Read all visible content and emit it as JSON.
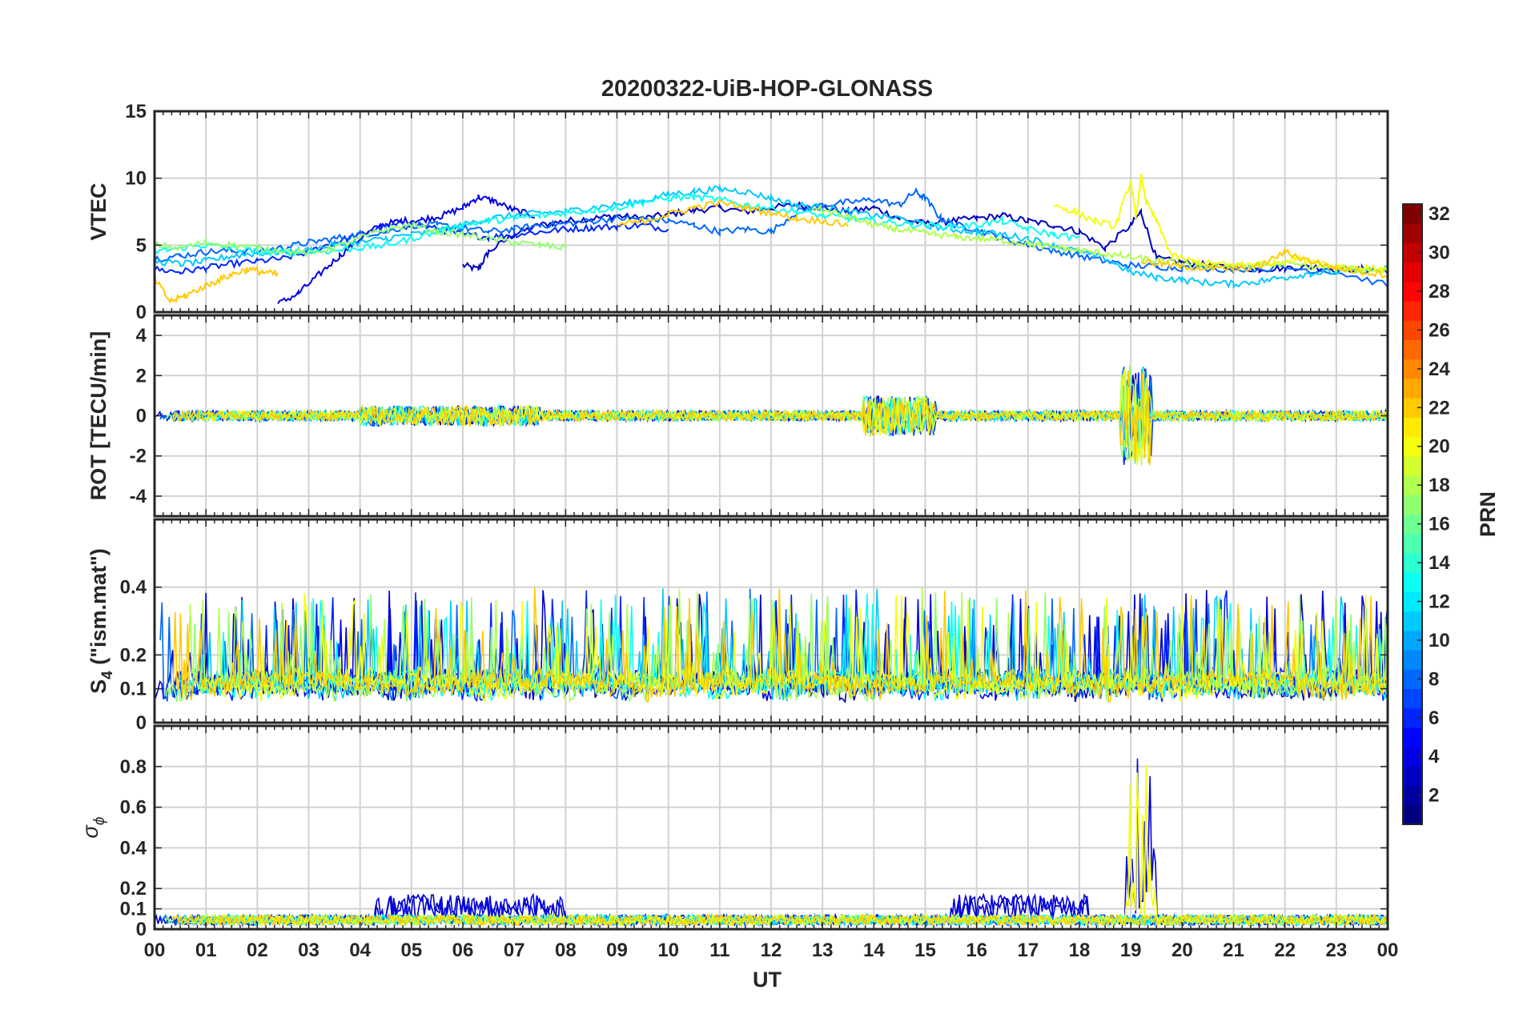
{
  "chart_data": {
    "title": "20200322-UiB-HOP-GLONASS",
    "type": "line",
    "xlabel": "UT",
    "x_tick_labels": [
      "00",
      "01",
      "02",
      "03",
      "04",
      "05",
      "06",
      "07",
      "08",
      "09",
      "10",
      "11",
      "12",
      "13",
      "14",
      "15",
      "16",
      "17",
      "18",
      "19",
      "20",
      "21",
      "22",
      "23",
      "00"
    ],
    "xlim": [
      0,
      24
    ],
    "grid": true,
    "colorbar": {
      "label": "PRN",
      "colormap": "jet",
      "range": [
        1,
        32
      ],
      "tick_labels": [
        "2",
        "4",
        "6",
        "8",
        "10",
        "12",
        "14",
        "16",
        "18",
        "20",
        "22",
        "24",
        "26",
        "28",
        "30",
        "32"
      ]
    },
    "panels": [
      {
        "id": "vtec",
        "ylabel": "VTEC",
        "ylim": [
          0,
          15
        ],
        "y_tick_labels": [
          "0",
          "5",
          "10",
          "15"
        ],
        "series": [
          {
            "prn": 3,
            "x": [
              6.0,
              6.3,
              6.5,
              7.0,
              7.5,
              8.0,
              8.5,
              9.0,
              9.5,
              10.0,
              10.5,
              11.0,
              11.5,
              12.0,
              12.5,
              13.0,
              13.5,
              14.0,
              14.5,
              15.0,
              15.5,
              16.0,
              16.5,
              17.0,
              17.5,
              18.0,
              18.5,
              19.0,
              19.2,
              19.5,
              20.0,
              20.5,
              21.0,
              21.5,
              22.0,
              22.5,
              23.0,
              23.5,
              24.0
            ],
            "y": [
              3.5,
              3.2,
              4.5,
              5.8,
              6.5,
              6.8,
              7.0,
              7.2,
              7.0,
              7.3,
              7.6,
              7.8,
              7.5,
              7.8,
              8.0,
              7.8,
              7.5,
              7.8,
              7.0,
              6.6,
              6.8,
              7.0,
              7.2,
              6.8,
              6.5,
              6.0,
              4.8,
              6.5,
              7.5,
              4.0,
              3.7,
              3.5,
              3.3,
              3.2,
              3.3,
              3.4,
              3.2,
              3.2,
              3.1
            ]
          },
          {
            "prn": 4,
            "x": [
              2.4,
              2.8,
              3.2,
              3.6,
              4.0,
              4.4,
              4.8,
              5.2,
              5.6,
              6.0,
              6.3,
              6.6,
              7.0,
              7.4
            ],
            "y": [
              0.6,
              1.4,
              2.8,
              4.2,
              5.5,
              6.5,
              6.8,
              6.9,
              7.2,
              7.8,
              8.6,
              8.3,
              7.6,
              7.2
            ]
          },
          {
            "prn": 6,
            "x": [
              0.0,
              0.5,
              1.0,
              1.5,
              2.0,
              2.5,
              3.0,
              3.5,
              4.0,
              4.5,
              5.0,
              5.5,
              6.0,
              6.5,
              7.0,
              7.5,
              8.0,
              8.5,
              9.0,
              9.5,
              10.0
            ],
            "y": [
              3.2,
              3.0,
              3.3,
              3.6,
              3.8,
              4.0,
              4.5,
              5.2,
              5.8,
              6.4,
              6.6,
              6.2,
              5.8,
              5.6,
              5.8,
              6.0,
              6.2,
              6.3,
              6.4,
              6.5,
              6.2
            ]
          },
          {
            "prn": 8,
            "x": [
              0.0,
              0.5,
              1.0,
              1.5,
              2.0,
              2.5,
              3.0,
              3.5,
              4.0,
              4.5,
              5.0,
              5.5,
              6.0,
              6.5,
              7.0,
              7.5,
              8.0,
              8.5,
              9.0,
              9.5,
              10.0,
              10.5,
              11.0,
              11.5,
              12.0,
              12.5,
              13.0,
              13.5,
              14.0,
              14.5,
              14.8,
              15.0,
              15.3,
              15.6,
              16.0,
              16.5,
              17.0,
              17.5,
              18.0,
              18.5,
              19.0,
              19.5,
              20.0,
              21.0,
              22.0,
              23.0,
              24.0
            ],
            "y": [
              4.0,
              4.2,
              4.5,
              4.6,
              4.6,
              4.8,
              5.2,
              5.5,
              5.8,
              6.0,
              6.5,
              6.5,
              6.3,
              6.0,
              6.2,
              6.5,
              6.6,
              6.8,
              7.0,
              7.0,
              6.8,
              6.5,
              6.0,
              6.2,
              6.0,
              7.5,
              8.0,
              8.2,
              8.4,
              8.0,
              9.0,
              8.5,
              7.0,
              6.5,
              6.2,
              5.5,
              5.0,
              4.6,
              4.2,
              3.8,
              3.5,
              3.4,
              3.3,
              3.2,
              3.3,
              3.0,
              2.0
            ]
          },
          {
            "prn": 11,
            "x": [
              0.0,
              0.5,
              1.0,
              1.5,
              2.0,
              2.5,
              3.0,
              3.5,
              4.0,
              4.5,
              5.0,
              5.5,
              6.0,
              6.5,
              7.0,
              7.5,
              8.0,
              8.5,
              9.0,
              9.5,
              10.0,
              10.5,
              11.0,
              11.5,
              12.0,
              12.5,
              13.0,
              13.5,
              14.0,
              14.5,
              15.0,
              15.5,
              16.0,
              16.5,
              17.0,
              17.5,
              18.0,
              18.5,
              19.0,
              19.5,
              20.0,
              20.5,
              21.0,
              21.5,
              22.0,
              22.5,
              23.0,
              23.5,
              24.0
            ],
            "y": [
              3.8,
              3.6,
              3.8,
              4.2,
              4.4,
              4.5,
              4.6,
              5.0,
              5.2,
              5.5,
              5.8,
              6.0,
              6.5,
              7.0,
              7.2,
              7.4,
              7.5,
              7.8,
              8.0,
              8.3,
              8.8,
              9.0,
              9.2,
              9.0,
              8.5,
              8.0,
              7.8,
              7.5,
              7.2,
              7.0,
              6.5,
              6.2,
              6.0,
              5.8,
              5.5,
              5.0,
              4.5,
              4.0,
              3.0,
              2.6,
              2.4,
              2.2,
              2.1,
              2.3,
              2.6,
              2.9,
              3.0,
              3.1,
              3.2
            ]
          },
          {
            "prn": 13,
            "x": [
              0.0,
              0.5,
              1.0,
              1.5,
              2.0,
              2.5,
              3.0,
              3.5,
              4.0,
              4.5,
              5.0,
              5.5,
              6.0,
              6.5,
              7.0,
              7.5,
              8.0,
              8.5,
              9.0,
              9.5,
              10.0,
              10.5,
              11.0,
              11.5,
              12.0,
              12.5,
              13.0,
              13.5,
              14.0,
              14.5,
              15.0,
              15.5,
              16.0,
              16.5,
              17.0,
              17.5,
              18.0
            ],
            "y": [
              4.5,
              4.8,
              5.0,
              4.8,
              4.5,
              4.4,
              4.5,
              4.6,
              4.8,
              5.0,
              5.5,
              6.0,
              6.5,
              6.8,
              7.0,
              7.2,
              7.4,
              7.6,
              7.8,
              8.2,
              8.5,
              8.6,
              8.4,
              8.0,
              7.8,
              7.5,
              7.2,
              7.0,
              6.8,
              6.6,
              6.5,
              6.4,
              6.5,
              6.8,
              6.2,
              5.8,
              5.5
            ]
          },
          {
            "prn": 17,
            "x": [
              0.0,
              0.5,
              1.0,
              1.5,
              2.0,
              2.5,
              3.0,
              3.5,
              4.0,
              4.5,
              5.0,
              5.5,
              6.0,
              6.5,
              7.0,
              7.5,
              8.0
            ],
            "y": [
              5.0,
              4.8,
              5.2,
              5.0,
              4.8,
              4.6,
              4.4,
              4.8,
              5.5,
              6.2,
              6.5,
              6.0,
              5.8,
              5.5,
              5.2,
              5.0,
              4.8
            ]
          },
          {
            "prn": 18,
            "x": [
              12.8,
              13.2,
              13.6,
              14.0,
              14.4,
              14.8,
              15.2,
              15.6,
              16.0,
              16.4,
              16.8,
              17.2,
              17.6,
              18.0,
              18.4,
              18.8,
              19.2,
              19.6,
              20.0,
              20.5,
              21.0,
              21.5,
              22.0,
              22.5,
              23.0,
              23.5,
              24.0
            ],
            "y": [
              7.8,
              7.4,
              7.0,
              6.5,
              6.2,
              6.0,
              5.8,
              5.6,
              5.5,
              5.4,
              5.2,
              5.0,
              4.8,
              4.6,
              4.4,
              4.2,
              4.0,
              3.8,
              3.6,
              3.5,
              3.4,
              3.5,
              3.6,
              3.4,
              3.3,
              3.2,
              3.1
            ]
          },
          {
            "prn": 20,
            "x": [
              17.5,
              17.9,
              18.3,
              18.7,
              19.0,
              19.1,
              19.2,
              19.3,
              19.5,
              19.8,
              20.2,
              20.6,
              21.0,
              21.4,
              21.8,
              22.2,
              22.6,
              23.0,
              23.4,
              23.8,
              24.0
            ],
            "y": [
              8.0,
              7.5,
              6.8,
              6.4,
              9.8,
              7.0,
              10.2,
              8.2,
              6.8,
              4.2,
              3.8,
              3.6,
              3.5,
              3.6,
              3.7,
              4.0,
              3.8,
              3.4,
              3.3,
              3.2,
              3.1
            ]
          },
          {
            "prn": 22,
            "x": [
              0.0,
              0.3,
              0.6,
              0.9,
              1.2,
              1.5,
              1.8,
              2.1,
              2.4,
              9.0,
              9.5,
              10.0,
              10.5,
              11.0,
              11.5,
              12.0,
              12.5,
              13.0,
              13.5,
              19.2,
              19.6,
              20.0,
              20.5,
              21.0,
              21.5,
              22.0,
              22.5,
              23.0,
              23.5,
              24.0
            ],
            "y": [
              2.5,
              0.8,
              1.2,
              1.8,
              2.3,
              2.8,
              3.2,
              3.0,
              2.8,
              6.5,
              6.8,
              7.3,
              7.8,
              8.2,
              7.8,
              7.4,
              7.0,
              6.8,
              6.5,
              3.8,
              3.6,
              3.4,
              3.3,
              3.2,
              3.4,
              4.5,
              3.8,
              3.3,
              3.0,
              2.8
            ]
          }
        ]
      },
      {
        "id": "rot",
        "ylabel": "ROT [TECU/min]",
        "ylim": [
          -5,
          5
        ],
        "y_tick_labels": [
          "-4",
          "-2",
          "0",
          "2",
          "4"
        ]
      },
      {
        "id": "s4",
        "ylabel_main": "S",
        "ylabel_sub": "4",
        "ylabel_rest": " (\"ism.mat\")",
        "ylim": [
          0,
          0.6
        ],
        "y_tick_labels": [
          "0",
          "0.1",
          "0.2",
          "0.4"
        ]
      },
      {
        "id": "sigma",
        "ylabel_main": "σ",
        "ylabel_sub": "ϕ",
        "ylim": [
          0,
          1.0
        ],
        "y_tick_labels": [
          "0",
          "0.1",
          "0.2",
          "0.4",
          "0.6",
          "0.8"
        ]
      }
    ]
  }
}
